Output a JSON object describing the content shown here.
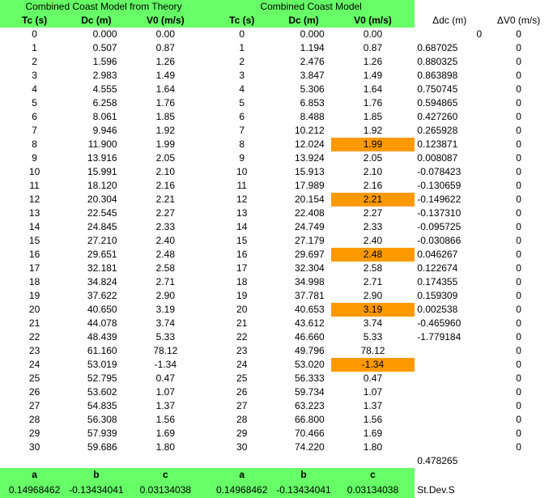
{
  "headers": {
    "group_theory": "Combined Coast Model from Theory",
    "group_model": "Combined Coast Model",
    "tc": "Tc (s)",
    "dc": "Dc (m)",
    "v0": "V0 (m/s)",
    "delta_dc": "Δdc (m)",
    "delta_v0": "ΔV0 (m/s)"
  },
  "rows": [
    {
      "tc": "0",
      "dc1": "0.000",
      "v1": "0.00",
      "tc2": "0",
      "dc2": "0.000",
      "v2": "0.00",
      "ddc": "0",
      "dv": "0",
      "hl": false
    },
    {
      "tc": "1",
      "dc1": "0.507",
      "v1": "0.87",
      "tc2": "1",
      "dc2": "1.194",
      "v2": "0.87",
      "ddc": "0.687025",
      "dv": "0",
      "hl": false
    },
    {
      "tc": "2",
      "dc1": "1.596",
      "v1": "1.26",
      "tc2": "2",
      "dc2": "2.476",
      "v2": "1.26",
      "ddc": "0.880325",
      "dv": "0",
      "hl": false
    },
    {
      "tc": "3",
      "dc1": "2.983",
      "v1": "1.49",
      "tc2": "3",
      "dc2": "3.847",
      "v2": "1.49",
      "ddc": "0.863898",
      "dv": "0",
      "hl": false
    },
    {
      "tc": "4",
      "dc1": "4.555",
      "v1": "1.64",
      "tc2": "4",
      "dc2": "5.306",
      "v2": "1.64",
      "ddc": "0.750745",
      "dv": "0",
      "hl": false
    },
    {
      "tc": "5",
      "dc1": "6.258",
      "v1": "1.76",
      "tc2": "5",
      "dc2": "6.853",
      "v2": "1.76",
      "ddc": "0.594865",
      "dv": "0",
      "hl": false
    },
    {
      "tc": "6",
      "dc1": "8.061",
      "v1": "1.85",
      "tc2": "6",
      "dc2": "8.488",
      "v2": "1.85",
      "ddc": "0.427260",
      "dv": "0",
      "hl": false
    },
    {
      "tc": "7",
      "dc1": "9.946",
      "v1": "1.92",
      "tc2": "7",
      "dc2": "10.212",
      "v2": "1.92",
      "ddc": "0.265928",
      "dv": "0",
      "hl": false
    },
    {
      "tc": "8",
      "dc1": "11.900",
      "v1": "1.99",
      "tc2": "8",
      "dc2": "12.024",
      "v2": "1.99",
      "ddc": "0.123871",
      "dv": "0",
      "hl": true
    },
    {
      "tc": "9",
      "dc1": "13.916",
      "v1": "2.05",
      "tc2": "9",
      "dc2": "13.924",
      "v2": "2.05",
      "ddc": "0.008087",
      "dv": "0",
      "hl": false
    },
    {
      "tc": "10",
      "dc1": "15.991",
      "v1": "2.10",
      "tc2": "10",
      "dc2": "15.913",
      "v2": "2.10",
      "ddc": "-0.078423",
      "dv": "0",
      "hl": false
    },
    {
      "tc": "11",
      "dc1": "18.120",
      "v1": "2.16",
      "tc2": "11",
      "dc2": "17.989",
      "v2": "2.16",
      "ddc": "-0.130659",
      "dv": "0",
      "hl": false
    },
    {
      "tc": "12",
      "dc1": "20.304",
      "v1": "2.21",
      "tc2": "12",
      "dc2": "20.154",
      "v2": "2.21",
      "ddc": "-0.149622",
      "dv": "0",
      "hl": true
    },
    {
      "tc": "13",
      "dc1": "22.545",
      "v1": "2.27",
      "tc2": "13",
      "dc2": "22.408",
      "v2": "2.27",
      "ddc": "-0.137310",
      "dv": "0",
      "hl": false
    },
    {
      "tc": "14",
      "dc1": "24.845",
      "v1": "2.33",
      "tc2": "14",
      "dc2": "24.749",
      "v2": "2.33",
      "ddc": "-0.095725",
      "dv": "0",
      "hl": false
    },
    {
      "tc": "15",
      "dc1": "27.210",
      "v1": "2.40",
      "tc2": "15",
      "dc2": "27.179",
      "v2": "2.40",
      "ddc": "-0.030866",
      "dv": "0",
      "hl": false
    },
    {
      "tc": "16",
      "dc1": "29.651",
      "v1": "2.48",
      "tc2": "16",
      "dc2": "29.697",
      "v2": "2.48",
      "ddc": "0.046267",
      "dv": "0",
      "hl": true
    },
    {
      "tc": "17",
      "dc1": "32.181",
      "v1": "2.58",
      "tc2": "17",
      "dc2": "32.304",
      "v2": "2.58",
      "ddc": "0.122674",
      "dv": "0",
      "hl": false
    },
    {
      "tc": "18",
      "dc1": "34.824",
      "v1": "2.71",
      "tc2": "18",
      "dc2": "34.998",
      "v2": "2.71",
      "ddc": "0.174355",
      "dv": "0",
      "hl": false
    },
    {
      "tc": "19",
      "dc1": "37.622",
      "v1": "2.90",
      "tc2": "19",
      "dc2": "37.781",
      "v2": "2.90",
      "ddc": "0.159309",
      "dv": "0",
      "hl": false
    },
    {
      "tc": "20",
      "dc1": "40.650",
      "v1": "3.19",
      "tc2": "20",
      "dc2": "40.653",
      "v2": "3.19",
      "ddc": "0.002538",
      "dv": "0",
      "hl": true
    },
    {
      "tc": "21",
      "dc1": "44.078",
      "v1": "3.74",
      "tc2": "21",
      "dc2": "43.612",
      "v2": "3.74",
      "ddc": "-0.465960",
      "dv": "0",
      "hl": false
    },
    {
      "tc": "22",
      "dc1": "48.439",
      "v1": "5.33",
      "tc2": "22",
      "dc2": "46.660",
      "v2": "5.33",
      "ddc": "-1.779184",
      "dv": "0",
      "hl": false
    },
    {
      "tc": "23",
      "dc1": "61.160",
      "v1": "78.12",
      "tc2": "23",
      "dc2": "49.796",
      "v2": "78.12",
      "ddc": "",
      "dv": "0",
      "hl": false
    },
    {
      "tc": "24",
      "dc1": "53.019",
      "v1": "-1.34",
      "tc2": "24",
      "dc2": "53.020",
      "v2": "-1.34",
      "ddc": "",
      "dv": "0",
      "hl": true
    },
    {
      "tc": "25",
      "dc1": "52.795",
      "v1": "0.47",
      "tc2": "25",
      "dc2": "56.333",
      "v2": "0.47",
      "ddc": "",
      "dv": "0",
      "hl": false
    },
    {
      "tc": "26",
      "dc1": "53.602",
      "v1": "1.07",
      "tc2": "26",
      "dc2": "59.734",
      "v2": "1.07",
      "ddc": "",
      "dv": "0",
      "hl": false
    },
    {
      "tc": "27",
      "dc1": "54.835",
      "v1": "1.37",
      "tc2": "27",
      "dc2": "63.223",
      "v2": "1.37",
      "ddc": "",
      "dv": "0",
      "hl": false
    },
    {
      "tc": "28",
      "dc1": "56.308",
      "v1": "1.56",
      "tc2": "28",
      "dc2": "66.800",
      "v2": "1.56",
      "ddc": "",
      "dv": "0",
      "hl": false
    },
    {
      "tc": "29",
      "dc1": "57.939",
      "v1": "1.69",
      "tc2": "29",
      "dc2": "70.466",
      "v2": "1.69",
      "ddc": "",
      "dv": "0",
      "hl": false
    },
    {
      "tc": "30",
      "dc1": "59.686",
      "v1": "1.80",
      "tc2": "30",
      "dc2": "74.220",
      "v2": "1.80",
      "ddc": "",
      "dv": "0",
      "hl": false
    }
  ],
  "stdev_value": "0.478265",
  "coef_labels": {
    "a": "a",
    "b": "b",
    "c": "c"
  },
  "coef_theory": {
    "a": "0.14968462",
    "b": "-0.13434041",
    "c": "0.03134038"
  },
  "coef_model": {
    "a": "0.14968462",
    "b": "-0.13434041",
    "c": "0.03134038"
  },
  "stdev_label": "St.Dev.S",
  "colors": {
    "header_green": "#66ff66",
    "highlight_orange": "#ff9900"
  }
}
